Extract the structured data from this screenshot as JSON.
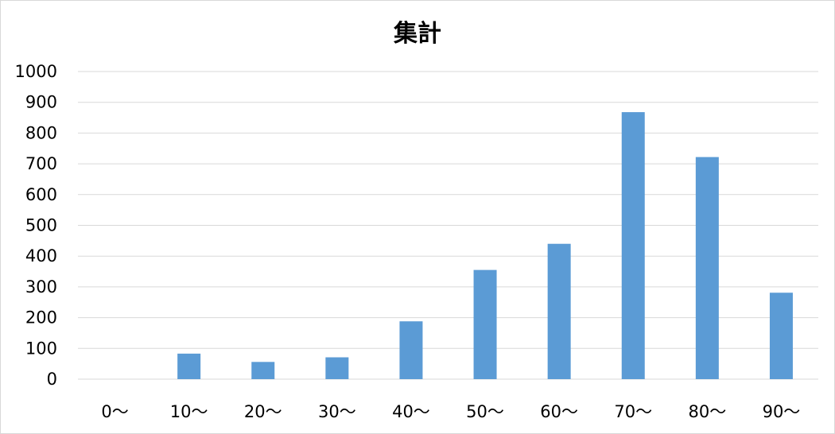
{
  "chart_data": {
    "type": "bar",
    "title": "集計",
    "categories": [
      "0～",
      "10～",
      "20～",
      "30～",
      "40～",
      "50～",
      "60～",
      "70～",
      "80～",
      "90～"
    ],
    "values": [
      0,
      83,
      56,
      71,
      188,
      355,
      440,
      868,
      722,
      281
    ],
    "yticks": [
      "0",
      "100",
      "200",
      "300",
      "400",
      "500",
      "600",
      "700",
      "800",
      "900",
      "1000"
    ],
    "ylim": [
      0,
      1000
    ],
    "grid": true,
    "legend": "none",
    "bar_color": "#5b9bd5",
    "grid_color": "#d9d9d9"
  }
}
